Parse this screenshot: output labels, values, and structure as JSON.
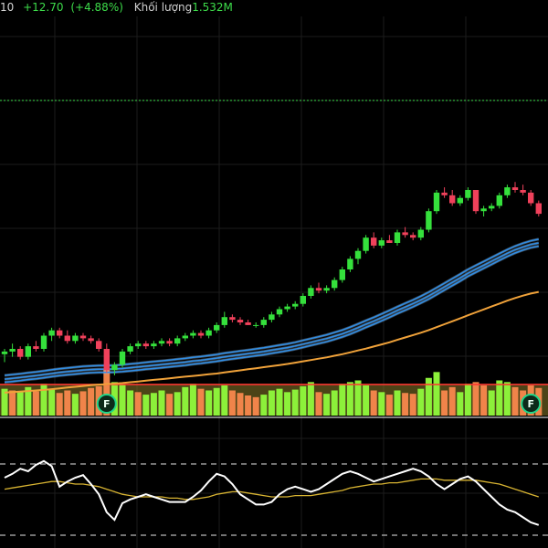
{
  "header": {
    "last_fragment": "10",
    "change": "+12.70",
    "change_pct": "(+4.88%)",
    "volume_label": "Khối lượng",
    "volume_value": "1.532M"
  },
  "colors": {
    "up": "#35e03c",
    "down": "#f0415b",
    "vol_up": "#8cf03a",
    "vol_down": "#f0844a",
    "ma_fast": "#2f8fe8",
    "ma_slow": "#f0a23a",
    "osc": "#ffffff",
    "osc_signal": "#d8b432",
    "marker": "#1fd68a"
  },
  "chart_data": {
    "type": "candlestick",
    "x_axis": "bar index (no labels visible)",
    "ylim": [
      0,
      100
    ],
    "candles": [
      {
        "o": 18,
        "h": 20,
        "l": 15,
        "c": 19
      },
      {
        "o": 19,
        "h": 22,
        "l": 17,
        "c": 20
      },
      {
        "o": 20,
        "h": 21,
        "l": 16,
        "c": 17
      },
      {
        "o": 17,
        "h": 22,
        "l": 16,
        "c": 21
      },
      {
        "o": 21,
        "h": 23,
        "l": 19,
        "c": 20
      },
      {
        "o": 20,
        "h": 26,
        "l": 19,
        "c": 25
      },
      {
        "o": 25,
        "h": 28,
        "l": 23,
        "c": 27
      },
      {
        "o": 27,
        "h": 28,
        "l": 24,
        "c": 25
      },
      {
        "o": 25,
        "h": 27,
        "l": 22,
        "c": 23
      },
      {
        "o": 23,
        "h": 26,
        "l": 22,
        "c": 25
      },
      {
        "o": 25,
        "h": 26,
        "l": 23,
        "c": 24
      },
      {
        "o": 24,
        "h": 25,
        "l": 22,
        "c": 23
      },
      {
        "o": 23,
        "h": 24,
        "l": 19,
        "c": 20
      },
      {
        "o": 20,
        "h": 22,
        "l": 11,
        "c": 12
      },
      {
        "o": 12,
        "h": 15,
        "l": 10,
        "c": 14
      },
      {
        "o": 14,
        "h": 20,
        "l": 13,
        "c": 19
      },
      {
        "o": 19,
        "h": 22,
        "l": 18,
        "c": 21
      },
      {
        "o": 21,
        "h": 23,
        "l": 20,
        "c": 22
      },
      {
        "o": 22,
        "h": 23,
        "l": 20,
        "c": 21
      },
      {
        "o": 21,
        "h": 23,
        "l": 20,
        "c": 22
      },
      {
        "o": 22,
        "h": 24,
        "l": 21,
        "c": 23
      },
      {
        "o": 23,
        "h": 24,
        "l": 21,
        "c": 22
      },
      {
        "o": 22,
        "h": 25,
        "l": 21,
        "c": 24
      },
      {
        "o": 24,
        "h": 26,
        "l": 23,
        "c": 25
      },
      {
        "o": 25,
        "h": 27,
        "l": 24,
        "c": 26
      },
      {
        "o": 26,
        "h": 27,
        "l": 24,
        "c": 25
      },
      {
        "o": 25,
        "h": 28,
        "l": 24,
        "c": 27
      },
      {
        "o": 27,
        "h": 30,
        "l": 26,
        "c": 29
      },
      {
        "o": 29,
        "h": 34,
        "l": 28,
        "c": 32
      },
      {
        "o": 32,
        "h": 33,
        "l": 30,
        "c": 31
      },
      {
        "o": 31,
        "h": 32,
        "l": 29,
        "c": 30
      },
      {
        "o": 30,
        "h": 31,
        "l": 29,
        "c": 29
      },
      {
        "o": 29,
        "h": 30,
        "l": 28,
        "c": 29
      },
      {
        "o": 29,
        "h": 32,
        "l": 28,
        "c": 31
      },
      {
        "o": 31,
        "h": 34,
        "l": 30,
        "c": 33
      },
      {
        "o": 33,
        "h": 36,
        "l": 32,
        "c": 35
      },
      {
        "o": 35,
        "h": 37,
        "l": 34,
        "c": 36
      },
      {
        "o": 36,
        "h": 38,
        "l": 35,
        "c": 37
      },
      {
        "o": 37,
        "h": 41,
        "l": 36,
        "c": 40
      },
      {
        "o": 40,
        "h": 44,
        "l": 39,
        "c": 43
      },
      {
        "o": 43,
        "h": 45,
        "l": 41,
        "c": 42
      },
      {
        "o": 42,
        "h": 44,
        "l": 41,
        "c": 43
      },
      {
        "o": 43,
        "h": 47,
        "l": 42,
        "c": 46
      },
      {
        "o": 46,
        "h": 51,
        "l": 45,
        "c": 50
      },
      {
        "o": 50,
        "h": 55,
        "l": 49,
        "c": 54
      },
      {
        "o": 54,
        "h": 58,
        "l": 52,
        "c": 57
      },
      {
        "o": 57,
        "h": 63,
        "l": 56,
        "c": 62
      },
      {
        "o": 62,
        "h": 64,
        "l": 58,
        "c": 59
      },
      {
        "o": 59,
        "h": 62,
        "l": 58,
        "c": 61
      },
      {
        "o": 61,
        "h": 63,
        "l": 60,
        "c": 60
      },
      {
        "o": 60,
        "h": 65,
        "l": 59,
        "c": 64
      },
      {
        "o": 64,
        "h": 66,
        "l": 62,
        "c": 63
      },
      {
        "o": 63,
        "h": 64,
        "l": 61,
        "c": 62
      },
      {
        "o": 62,
        "h": 66,
        "l": 61,
        "c": 65
      },
      {
        "o": 65,
        "h": 73,
        "l": 64,
        "c": 72
      },
      {
        "o": 72,
        "h": 80,
        "l": 71,
        "c": 79
      },
      {
        "o": 79,
        "h": 81,
        "l": 77,
        "c": 78
      },
      {
        "o": 78,
        "h": 80,
        "l": 74,
        "c": 75
      },
      {
        "o": 75,
        "h": 78,
        "l": 74,
        "c": 77
      },
      {
        "o": 77,
        "h": 81,
        "l": 76,
        "c": 80
      },
      {
        "o": 80,
        "h": 79,
        "l": 71,
        "c": 72
      },
      {
        "o": 72,
        "h": 74,
        "l": 70,
        "c": 73
      },
      {
        "o": 73,
        "h": 75,
        "l": 72,
        "c": 74
      },
      {
        "o": 74,
        "h": 79,
        "l": 73,
        "c": 78
      },
      {
        "o": 78,
        "h": 82,
        "l": 77,
        "c": 81
      },
      {
        "o": 81,
        "h": 83,
        "l": 79,
        "c": 80
      },
      {
        "o": 80,
        "h": 82,
        "l": 78,
        "c": 79
      },
      {
        "o": 79,
        "h": 80,
        "l": 74,
        "c": 75
      },
      {
        "o": 75,
        "h": 76,
        "l": 70,
        "c": 71
      }
    ],
    "ma_fast_1": [
      10,
      10.3,
      10.6,
      11,
      11.3,
      11.7,
      12.1,
      12.5,
      12.8,
      13.1,
      13.4,
      13.6,
      13.7,
      13.7,
      13.8,
      14,
      14.3,
      14.6,
      14.9,
      15.2,
      15.5,
      15.8,
      16.1,
      16.4,
      16.8,
      17.1,
      17.5,
      17.9,
      18.4,
      18.8,
      19.2,
      19.6,
      20,
      20.4,
      20.9,
      21.4,
      21.9,
      22.5,
      23.2,
      23.9,
      24.6,
      25.3,
      26.2,
      27.1,
      28.2,
      29.4,
      30.7,
      31.9,
      33.2,
      34.5,
      35.9,
      37.2,
      38.5,
      39.9,
      41.4,
      43.1,
      44.8,
      46.5,
      48.2,
      50,
      51.5,
      53,
      54.5,
      56,
      57.5,
      58.8,
      59.9,
      60.8,
      61.4
    ],
    "ma_fast_2": [
      8.6,
      8.9,
      9.2,
      9.6,
      9.9,
      10.3,
      10.7,
      11.1,
      11.4,
      11.7,
      12,
      12.2,
      12.3,
      12.3,
      12.4,
      12.6,
      12.9,
      13.2,
      13.5,
      13.8,
      14.1,
      14.4,
      14.7,
      15,
      15.4,
      15.7,
      16.1,
      16.5,
      17,
      17.4,
      17.8,
      18.2,
      18.6,
      19,
      19.5,
      20,
      20.5,
      21.1,
      21.8,
      22.5,
      23.2,
      23.9,
      24.8,
      25.7,
      26.8,
      28,
      29.3,
      30.5,
      31.8,
      33.1,
      34.5,
      35.8,
      37.1,
      38.5,
      40,
      41.7,
      43.4,
      45.1,
      46.8,
      48.6,
      50.1,
      51.6,
      53.1,
      54.6,
      56.1,
      57.4,
      58.5,
      59.4,
      60
    ],
    "ma_fast_3": [
      7.4,
      7.7,
      8,
      8.4,
      8.7,
      9.1,
      9.5,
      9.9,
      10.2,
      10.5,
      10.8,
      11,
      11.1,
      11.1,
      11.2,
      11.4,
      11.7,
      12,
      12.3,
      12.6,
      12.9,
      13.2,
      13.5,
      13.8,
      14.2,
      14.5,
      14.9,
      15.3,
      15.8,
      16.2,
      16.6,
      17,
      17.4,
      17.8,
      18.3,
      18.8,
      19.3,
      19.9,
      20.6,
      21.3,
      22,
      22.7,
      23.6,
      24.5,
      25.6,
      26.8,
      28.1,
      29.3,
      30.6,
      31.9,
      33.3,
      34.6,
      35.9,
      37.3,
      38.8,
      40.5,
      42.2,
      43.9,
      45.6,
      47.4,
      48.9,
      50.4,
      51.9,
      53.4,
      54.9,
      56.2,
      57.3,
      58.2,
      58.8
    ],
    "ma_slow": [
      3.5,
      3.7,
      3.9,
      4.1,
      4.3,
      4.5,
      4.8,
      5.1,
      5.4,
      5.7,
      6,
      6.3,
      6.5,
      6.7,
      6.9,
      7.1,
      7.4,
      7.7,
      8,
      8.3,
      8.6,
      8.9,
      9.2,
      9.5,
      9.8,
      10.1,
      10.4,
      10.7,
      11.1,
      11.5,
      11.9,
      12.3,
      12.7,
      13.1,
      13.5,
      13.9,
      14.3,
      14.8,
      15.3,
      15.8,
      16.3,
      16.8,
      17.4,
      18,
      18.7,
      19.4,
      20.1,
      20.9,
      21.7,
      22.5,
      23.4,
      24.3,
      25.2,
      26.1,
      27.1,
      28.2,
      29.3,
      30.4,
      31.5,
      32.7,
      33.8,
      34.9,
      36,
      37.1,
      38.2,
      39.2,
      40.1,
      40.9,
      41.5
    ],
    "volume": [
      {
        "v": 32,
        "up": true
      },
      {
        "v": 30,
        "up": false
      },
      {
        "v": 28,
        "up": true
      },
      {
        "v": 34,
        "up": true
      },
      {
        "v": 29,
        "up": false
      },
      {
        "v": 38,
        "up": true
      },
      {
        "v": 31,
        "up": true
      },
      {
        "v": 27,
        "up": false
      },
      {
        "v": 30,
        "up": false
      },
      {
        "v": 26,
        "up": true
      },
      {
        "v": 29,
        "up": false
      },
      {
        "v": 33,
        "up": false
      },
      {
        "v": 35,
        "up": false
      },
      {
        "v": 55,
        "up": false
      },
      {
        "v": 40,
        "up": true
      },
      {
        "v": 37,
        "up": true
      },
      {
        "v": 30,
        "up": true
      },
      {
        "v": 28,
        "up": false
      },
      {
        "v": 25,
        "up": true
      },
      {
        "v": 27,
        "up": true
      },
      {
        "v": 30,
        "up": true
      },
      {
        "v": 26,
        "up": false
      },
      {
        "v": 28,
        "up": true
      },
      {
        "v": 34,
        "up": true
      },
      {
        "v": 38,
        "up": true
      },
      {
        "v": 32,
        "up": false
      },
      {
        "v": 30,
        "up": true
      },
      {
        "v": 33,
        "up": true
      },
      {
        "v": 36,
        "up": true
      },
      {
        "v": 30,
        "up": false
      },
      {
        "v": 27,
        "up": false
      },
      {
        "v": 24,
        "up": false
      },
      {
        "v": 22,
        "up": false
      },
      {
        "v": 25,
        "up": true
      },
      {
        "v": 30,
        "up": true
      },
      {
        "v": 32,
        "up": true
      },
      {
        "v": 28,
        "up": true
      },
      {
        "v": 31,
        "up": true
      },
      {
        "v": 35,
        "up": true
      },
      {
        "v": 40,
        "up": true
      },
      {
        "v": 28,
        "up": false
      },
      {
        "v": 26,
        "up": true
      },
      {
        "v": 30,
        "up": true
      },
      {
        "v": 38,
        "up": true
      },
      {
        "v": 40,
        "up": true
      },
      {
        "v": 42,
        "up": true
      },
      {
        "v": 36,
        "up": true
      },
      {
        "v": 30,
        "up": false
      },
      {
        "v": 28,
        "up": true
      },
      {
        "v": 25,
        "up": false
      },
      {
        "v": 30,
        "up": true
      },
      {
        "v": 27,
        "up": false
      },
      {
        "v": 26,
        "up": false
      },
      {
        "v": 32,
        "up": true
      },
      {
        "v": 45,
        "up": true
      },
      {
        "v": 52,
        "up": true
      },
      {
        "v": 30,
        "up": false
      },
      {
        "v": 34,
        "up": false
      },
      {
        "v": 28,
        "up": true
      },
      {
        "v": 38,
        "up": true
      },
      {
        "v": 40,
        "up": false
      },
      {
        "v": 36,
        "up": false
      },
      {
        "v": 30,
        "up": true
      },
      {
        "v": 42,
        "up": true
      },
      {
        "v": 40,
        "up": true
      },
      {
        "v": 34,
        "up": false
      },
      {
        "v": 30,
        "up": false
      },
      {
        "v": 36,
        "up": false
      },
      {
        "v": 33,
        "up": false
      }
    ],
    "oscillator": [
      55,
      58,
      62,
      60,
      65,
      68,
      64,
      48,
      52,
      55,
      57,
      50,
      42,
      28,
      22,
      35,
      38,
      40,
      42,
      40,
      38,
      36,
      36,
      36,
      40,
      45,
      52,
      58,
      56,
      50,
      42,
      38,
      34,
      34,
      36,
      42,
      46,
      48,
      46,
      44,
      46,
      50,
      54,
      58,
      60,
      58,
      55,
      52,
      54,
      56,
      58,
      60,
      62,
      60,
      56,
      50,
      46,
      50,
      54,
      56,
      52,
      46,
      40,
      34,
      30,
      28,
      24,
      20,
      18
    ],
    "oscillator_signal": [
      46,
      47,
      48,
      49,
      50,
      51,
      52,
      52,
      51,
      50,
      50,
      49,
      48,
      46,
      44,
      42,
      41,
      40,
      40,
      40,
      40,
      39,
      39,
      38,
      38,
      39,
      40,
      42,
      43,
      44,
      44,
      43,
      42,
      41,
      40,
      40,
      40,
      41,
      41,
      41,
      42,
      43,
      44,
      45,
      47,
      48,
      49,
      50,
      50,
      51,
      51,
      52,
      53,
      54,
      54,
      54,
      53,
      53,
      53,
      53,
      53,
      52,
      51,
      50,
      48,
      46,
      44,
      42,
      40
    ],
    "markers": [
      {
        "bar": 13,
        "label": "F"
      },
      {
        "bar": 67,
        "label": "F"
      }
    ]
  }
}
